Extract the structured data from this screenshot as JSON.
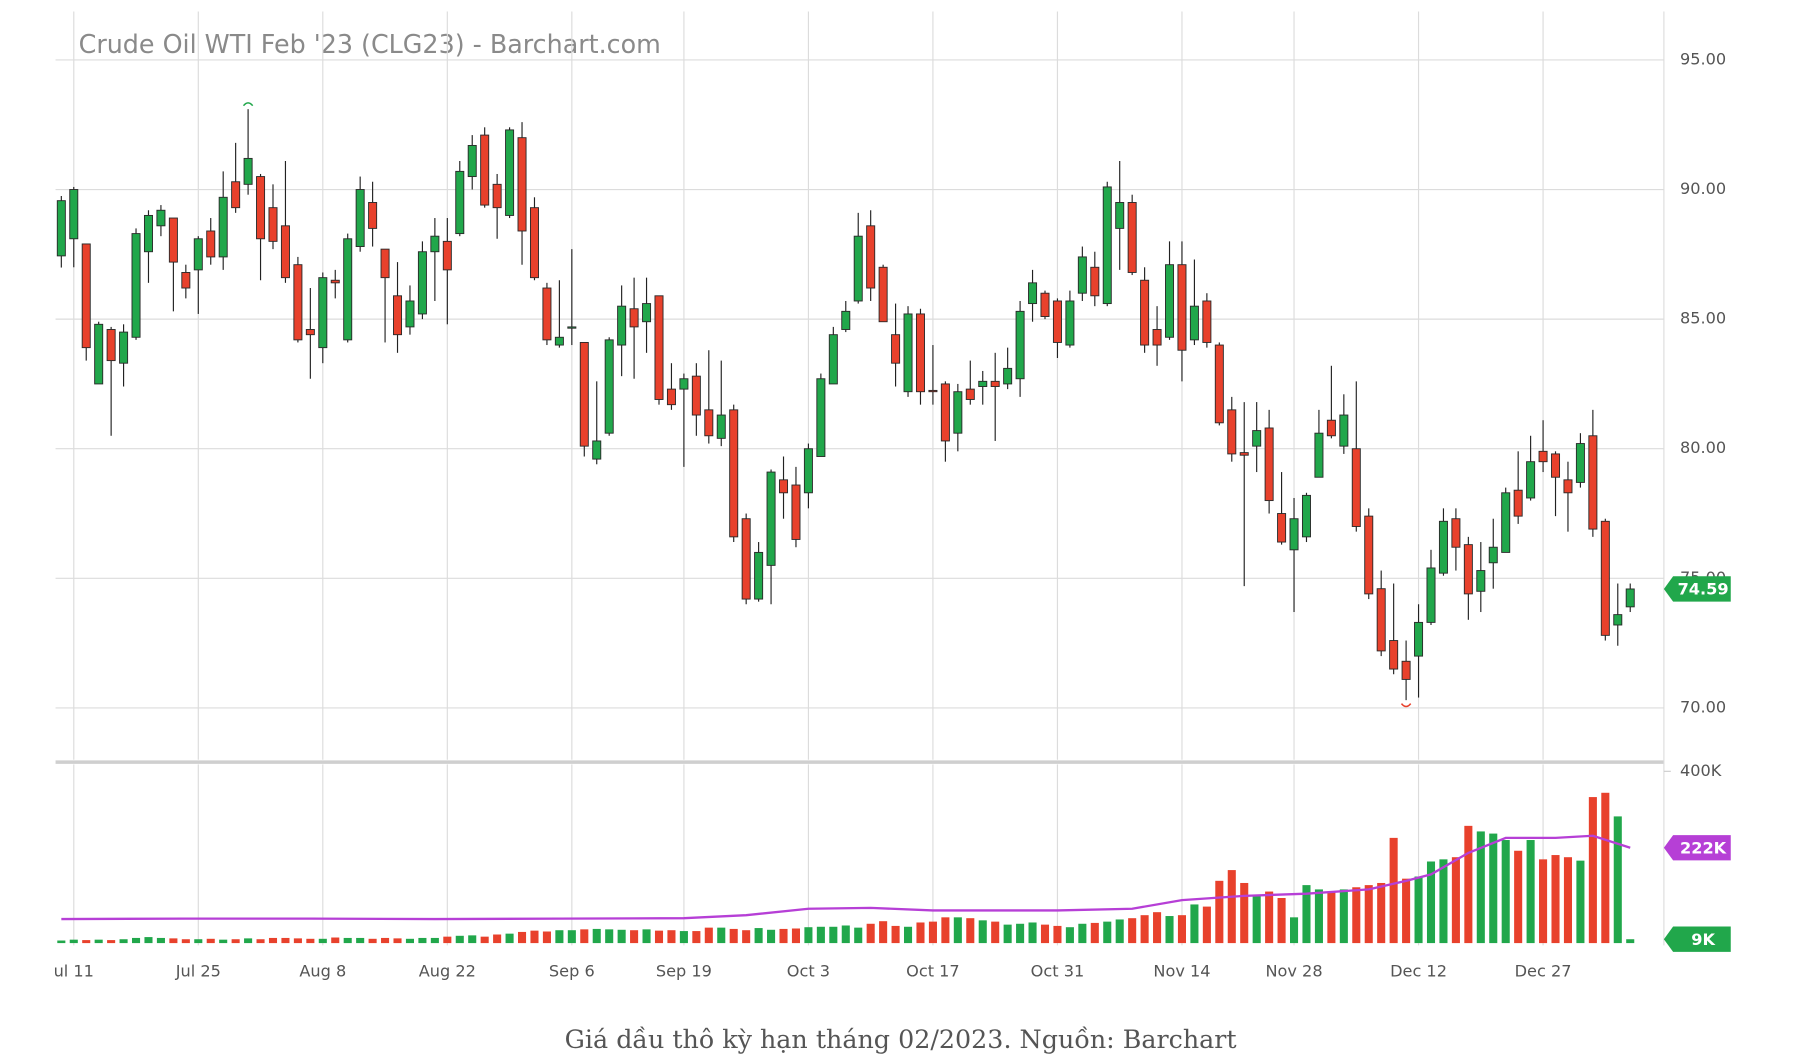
{
  "chart_data": {
    "type": "candlestick",
    "title": "Crude Oil WTI Feb '23 (CLG23) - Barchart.com",
    "caption": "Giá dầu thô kỳ hạn tháng 02/2023. Nguồn: Barchart",
    "up_color": "#21a74b",
    "down_color": "#e8412c",
    "ma_color": "#b63fd6",
    "categories": [
      null,
      "ul 11",
      null,
      null,
      null,
      null,
      null,
      null,
      null,
      null,
      null,
      "Jul 25",
      null,
      null,
      null,
      null,
      null,
      null,
      null,
      null,
      null,
      "Aug 8",
      null,
      null,
      null,
      null,
      null,
      null,
      null,
      null,
      null,
      "Aug 22",
      null,
      null,
      null,
      null,
      null,
      null,
      null,
      null,
      null,
      "Sep 6",
      null,
      null,
      null,
      null,
      null,
      null,
      null,
      null,
      "Sep 19",
      null,
      null,
      null,
      null,
      null,
      null,
      null,
      null,
      null,
      "Oct 3",
      null,
      null,
      null,
      null,
      null,
      null,
      null,
      null,
      null,
      "Oct 17",
      null,
      null,
      null,
      null,
      null,
      null,
      null,
      null,
      null,
      "Oct 31",
      null,
      null,
      null,
      null,
      null,
      null,
      null,
      null,
      null,
      "Nov 14",
      null,
      null,
      null,
      null,
      null,
      null,
      null,
      null,
      "Nov 28",
      null,
      null,
      null,
      null,
      null,
      null,
      null,
      null,
      null,
      "Dec 12",
      null,
      null,
      null,
      null,
      null,
      null,
      null,
      null,
      null,
      "Dec 27",
      null,
      null,
      null,
      null,
      null,
      null,
      null
    ],
    "open": [
      87.44,
      88.1,
      87.9,
      82.5,
      84.6,
      83.3,
      84.3,
      87.6,
      88.6,
      88.9,
      86.8,
      86.9,
      88.4,
      87.4,
      90.3,
      90.2,
      90.5,
      89.3,
      88.6,
      87.1,
      84.6,
      83.9,
      86.5,
      84.2,
      87.8,
      89.5,
      87.7,
      85.9,
      84.7,
      85.2,
      87.6,
      88.0,
      88.3,
      90.5,
      92.1,
      90.2,
      89.0,
      92.0,
      89.3,
      86.2,
      84.0,
      84.65,
      84.1,
      79.6,
      80.6,
      84.0,
      85.4,
      84.9,
      85.9,
      82.3,
      82.3,
      82.8,
      81.5,
      80.4,
      81.5,
      77.3,
      74.2,
      75.5,
      78.8,
      78.6,
      78.3,
      79.7,
      82.5,
      84.6,
      85.7,
      88.6,
      87.0,
      84.4,
      82.2,
      85.2,
      82.25,
      82.5,
      80.6,
      82.3,
      82.4,
      82.6,
      82.5,
      82.7,
      85.6,
      86.0,
      85.7,
      84.0,
      86.0,
      87.0,
      85.6,
      88.5,
      89.5,
      86.5,
      84.6,
      84.3,
      87.1,
      84.2,
      85.7,
      84.0,
      81.5,
      79.85,
      80.1,
      80.8,
      77.5,
      76.1,
      76.6,
      78.9,
      81.1,
      80.1,
      80.0,
      77.4,
      74.6,
      72.6,
      71.8,
      72.0,
      73.3,
      75.2,
      77.3,
      76.3,
      74.5,
      75.6,
      76.0,
      78.4,
      78.1,
      79.9,
      79.8,
      78.8,
      78.7,
      80.5,
      77.2,
      73.2,
      73.9
    ],
    "high": [
      89.75,
      90.1,
      87.9,
      84.9,
      84.7,
      84.8,
      88.5,
      89.2,
      89.4,
      88.9,
      87.1,
      88.2,
      88.9,
      90.7,
      91.8,
      93.1,
      90.6,
      90.2,
      91.1,
      87.4,
      86.2,
      86.8,
      86.9,
      88.3,
      90.5,
      90.3,
      87.7,
      87.2,
      86.3,
      88.0,
      88.9,
      88.9,
      91.1,
      92.1,
      92.4,
      90.6,
      92.4,
      92.6,
      89.7,
      86.4,
      86.5,
      87.7,
      84.1,
      82.6,
      84.3,
      86.3,
      86.6,
      86.6,
      85.9,
      83.3,
      82.9,
      83.3,
      83.8,
      83.4,
      81.7,
      77.5,
      76.4,
      79.2,
      79.7,
      79.3,
      80.2,
      82.9,
      84.7,
      85.7,
      89.1,
      89.2,
      87.1,
      85.6,
      85.5,
      85.4,
      84.0,
      82.6,
      82.5,
      83.4,
      83.0,
      83.7,
      83.9,
      85.7,
      86.9,
      86.1,
      85.8,
      86.1,
      87.8,
      87.6,
      90.3,
      91.1,
      89.8,
      87.0,
      85.5,
      88.0,
      88.0,
      87.3,
      86.0,
      84.1,
      82.0,
      81.8,
      81.8,
      81.5,
      79.1,
      78.1,
      78.3,
      81.5,
      83.2,
      82.1,
      82.6,
      77.7,
      75.3,
      74.8,
      72.6,
      74.0,
      76.1,
      77.7,
      77.7,
      76.6,
      76.4,
      77.3,
      78.5,
      79.9,
      80.5,
      81.1,
      79.9,
      79.5,
      80.6,
      81.5,
      77.3,
      74.8,
      74.8
    ],
    "low": [
      86.99,
      87.0,
      83.4,
      82.5,
      80.5,
      82.4,
      84.2,
      86.4,
      88.2,
      85.3,
      85.8,
      85.2,
      87.1,
      86.9,
      89.1,
      89.8,
      86.5,
      87.7,
      86.4,
      84.1,
      82.7,
      83.3,
      85.8,
      84.1,
      87.6,
      87.8,
      84.1,
      83.7,
      84.4,
      85.0,
      85.7,
      84.8,
      88.2,
      90.0,
      89.3,
      88.1,
      88.9,
      87.1,
      86.5,
      84.0,
      83.9,
      84.0,
      79.7,
      79.4,
      80.5,
      82.8,
      82.7,
      83.7,
      81.7,
      81.5,
      79.3,
      80.5,
      80.2,
      80.1,
      76.4,
      74.0,
      74.1,
      74.0,
      77.3,
      76.2,
      77.7,
      79.7,
      82.5,
      84.5,
      85.6,
      85.7,
      84.9,
      82.4,
      82.0,
      81.7,
      81.7,
      79.5,
      79.9,
      81.7,
      81.7,
      80.3,
      82.3,
      82.0,
      84.9,
      85.0,
      83.5,
      83.9,
      85.7,
      85.5,
      85.5,
      86.9,
      86.7,
      83.7,
      83.2,
      84.2,
      82.6,
      84.0,
      83.9,
      80.9,
      79.5,
      74.7,
      79.1,
      77.5,
      76.3,
      73.7,
      76.4,
      78.9,
      80.4,
      79.8,
      76.8,
      74.2,
      72.0,
      71.3,
      70.3,
      70.4,
      73.2,
      75.1,
      75.3,
      73.4,
      73.7,
      74.6,
      76.0,
      77.1,
      78.0,
      79.1,
      77.4,
      76.8,
      78.5,
      76.6,
      72.6,
      72.4,
      73.7
    ],
    "close": [
      89.57,
      90.0,
      83.9,
      84.8,
      83.4,
      84.5,
      88.3,
      89.0,
      89.2,
      87.2,
      86.2,
      88.1,
      87.4,
      89.7,
      89.3,
      91.2,
      88.1,
      88.0,
      86.6,
      84.2,
      84.4,
      86.6,
      86.4,
      88.1,
      90.0,
      88.5,
      86.6,
      84.4,
      85.7,
      87.6,
      88.2,
      86.9,
      90.7,
      91.7,
      89.4,
      89.3,
      92.3,
      88.4,
      86.6,
      84.2,
      84.3,
      84.7,
      80.1,
      80.3,
      84.2,
      85.5,
      84.7,
      85.6,
      81.9,
      81.7,
      82.7,
      81.3,
      80.5,
      81.3,
      76.6,
      74.2,
      76.0,
      79.1,
      78.3,
      76.5,
      80.0,
      82.7,
      84.4,
      85.3,
      88.2,
      86.2,
      84.9,
      83.3,
      85.2,
      82.2,
      82.2,
      80.3,
      82.2,
      81.9,
      82.6,
      82.4,
      83.1,
      85.3,
      86.4,
      85.1,
      84.1,
      85.7,
      87.4,
      85.9,
      90.1,
      89.5,
      86.8,
      84.0,
      84.0,
      87.1,
      83.8,
      85.5,
      84.1,
      81.0,
      79.8,
      79.75,
      80.7,
      78.0,
      76.4,
      77.3,
      78.2,
      80.6,
      80.5,
      81.3,
      77.0,
      74.4,
      72.2,
      71.5,
      71.1,
      73.3,
      75.4,
      77.2,
      76.2,
      74.4,
      75.3,
      76.2,
      78.3,
      77.4,
      79.5,
      79.5,
      78.9,
      78.3,
      80.2,
      76.9,
      72.8,
      73.6,
      74.59
    ],
    "volume": [
      6000,
      8000,
      7000,
      8000,
      7000,
      9000,
      12000,
      14000,
      12000,
      11000,
      9000,
      9000,
      10000,
      8000,
      9000,
      11000,
      9000,
      12000,
      12000,
      11000,
      10000,
      10000,
      13000,
      12000,
      12000,
      10000,
      12000,
      11000,
      10000,
      12000,
      12000,
      15000,
      17000,
      18000,
      15000,
      20000,
      22000,
      26000,
      29000,
      27000,
      30000,
      30000,
      32000,
      33000,
      32000,
      31000,
      30000,
      32000,
      29000,
      30000,
      28000,
      28000,
      36000,
      36000,
      33000,
      30000,
      35000,
      31000,
      33000,
      34000,
      37000,
      38000,
      38000,
      41000,
      36000,
      45000,
      51000,
      40000,
      38000,
      48000,
      50000,
      60000,
      60000,
      58000,
      53000,
      50000,
      43000,
      45000,
      48000,
      43000,
      40000,
      37000,
      45000,
      47000,
      50000,
      55000,
      58000,
      65000,
      72000,
      63000,
      65000,
      90000,
      85000,
      145000,
      170000,
      140000,
      110000,
      120000,
      105000,
      60000,
      135000,
      125000,
      120000,
      125000,
      130000,
      135000,
      140000,
      245000,
      150000,
      155000,
      190000,
      195000,
      200000,
      273000,
      260000,
      255000,
      240000,
      215000,
      240000,
      195000,
      205000,
      200000,
      192000,
      340000,
      350000,
      295000,
      9000
    ],
    "volume_ma": {
      "x": [
        0,
        10,
        20,
        30,
        40,
        50,
        55,
        60,
        65,
        70,
        80,
        86,
        90,
        95,
        100,
        105,
        108,
        110,
        113,
        116,
        120,
        123,
        126
      ],
      "values": [
        56000,
        57000,
        57000,
        56000,
        57000,
        58000,
        65000,
        80000,
        82000,
        76000,
        76000,
        80000,
        100000,
        110000,
        115000,
        125000,
        145000,
        160000,
        210000,
        245000,
        245000,
        250000,
        222000
      ]
    },
    "ylim": [
      68,
      96.8
    ],
    "yticks": [
      {
        "value": 70,
        "label": "70.00"
      },
      {
        "value": 75,
        "label": "75.00"
      },
      {
        "value": 80,
        "label": "80.00"
      },
      {
        "value": 85,
        "label": "85.00"
      },
      {
        "value": 90,
        "label": "90.00"
      },
      {
        "value": 95,
        "label": "95.00"
      }
    ],
    "volume_ylim": [
      0,
      400000
    ],
    "volume_yticks": [
      {
        "value": 400000,
        "label": "400K"
      }
    ],
    "last_price": 74.59,
    "last_volume_ma": {
      "value": 222000,
      "label": "222K"
    },
    "last_volume": {
      "value": 9000,
      "label": "9K"
    },
    "grid": true
  }
}
